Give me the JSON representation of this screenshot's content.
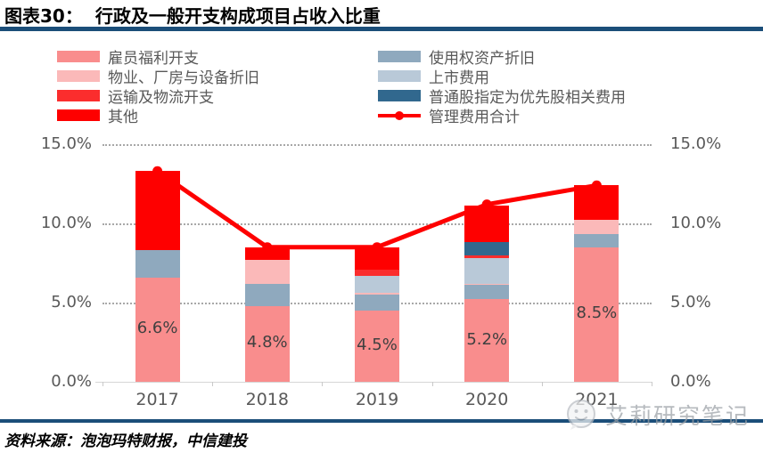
{
  "header": {
    "figure_label": "图表30：",
    "title": "行政及一般开支构成项目占收入比重"
  },
  "footer": {
    "source": "资料来源：泡泡玛特财报，中信建投",
    "watermark": "艾莉研究笔记",
    "watermark_icon": "chat-face-icon"
  },
  "colors": {
    "rule_navy": "#1b4e79",
    "axis_text": "#595959",
    "value_label": "#404040",
    "gridline": "#a8a8a8",
    "line_red": "#fe0000"
  },
  "chart_data": {
    "type": "stacked-bar+line",
    "categories": [
      "2017",
      "2018",
      "2019",
      "2020",
      "2021"
    ],
    "series": [
      {
        "name": "雇员福利开支",
        "color": "#f98d8d",
        "values": [
          6.6,
          4.8,
          4.5,
          5.2,
          8.5
        ]
      },
      {
        "name": "使用权资产折旧",
        "color": "#8fa9be",
        "values": [
          1.7,
          1.4,
          1.0,
          0.9,
          0.8
        ]
      },
      {
        "name": "物业、厂房与设备折旧",
        "color": "#fbb9b9",
        "values": [
          0.0,
          1.5,
          0.1,
          0.1,
          0.9
        ]
      },
      {
        "name": "上市费用",
        "color": "#b9c9d8",
        "values": [
          0.0,
          0.0,
          1.1,
          1.6,
          0.0
        ]
      },
      {
        "name": "运输及物流开支",
        "color": "#fb2d2d",
        "values": [
          0.0,
          0.0,
          0.4,
          0.2,
          0.0
        ]
      },
      {
        "name": "普通股指定为优先股相关费用",
        "color": "#31688e",
        "values": [
          0.0,
          0.0,
          0.0,
          0.8,
          0.0
        ]
      },
      {
        "name": "其他",
        "color": "#fe0000",
        "values": [
          5.0,
          0.8,
          1.4,
          2.3,
          2.2
        ]
      }
    ],
    "line_series": {
      "name": "管理费用合计",
      "color": "#fe0000",
      "values": [
        13.3,
        8.5,
        8.5,
        11.2,
        12.4
      ]
    },
    "bar_labels": [
      "6.6%",
      "4.8%",
      "4.5%",
      "5.2%",
      "8.5%"
    ],
    "y_axis": {
      "ticks": [
        {
          "value": 0,
          "label": "0.0%"
        },
        {
          "value": 5,
          "label": "5.0%"
        },
        {
          "value": 10,
          "label": "10.0%"
        },
        {
          "value": 15,
          "label": "15.0%"
        }
      ],
      "max": 15,
      "grid_values": [
        5,
        10,
        15
      ]
    },
    "legend": {
      "left": [
        {
          "label": "雇员福利开支",
          "color": "#f98d8d",
          "marker": "box"
        },
        {
          "label": "物业、厂房与设备折旧",
          "color": "#fbb9b9",
          "marker": "box"
        },
        {
          "label": "运输及物流开支",
          "color": "#fb2d2d",
          "marker": "box"
        },
        {
          "label": "其他",
          "color": "#fe0000",
          "marker": "box"
        }
      ],
      "right": [
        {
          "label": "使用权资产折旧",
          "color": "#8fa9be",
          "marker": "box"
        },
        {
          "label": "上市费用",
          "color": "#b9c9d8",
          "marker": "box"
        },
        {
          "label": "普通股指定为优先股相关费用",
          "color": "#31688e",
          "marker": "box"
        },
        {
          "label": "管理费用合计",
          "color": "#fe0000",
          "marker": "line"
        }
      ],
      "position": "top"
    }
  }
}
